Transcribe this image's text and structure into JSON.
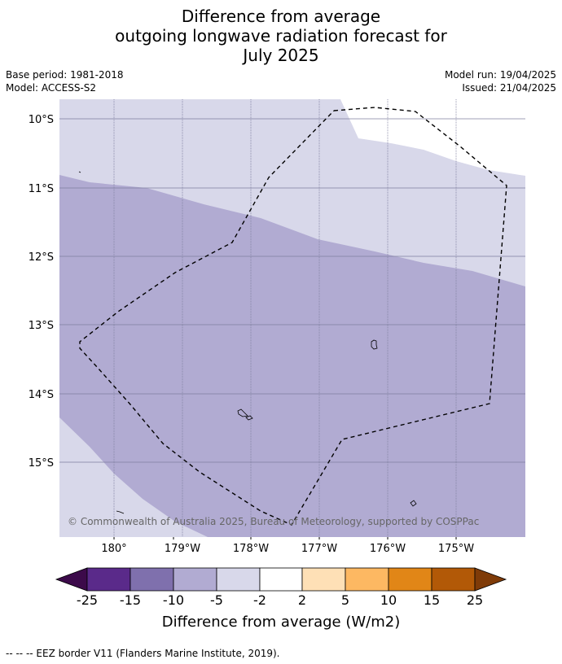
{
  "title": {
    "line1": "Difference from average",
    "line2": "outgoing longwave radiation forecast for",
    "line3": "July 2025"
  },
  "meta": {
    "base_period": "Base period: 1981-2018",
    "model": "Model: ACCESS-S2",
    "model_run": "Model run: 19/04/2025",
    "issued": "Issued: 21/04/2025"
  },
  "map": {
    "lat_labels": [
      "10°S",
      "11°S",
      "12°S",
      "13°S",
      "14°S",
      "15°S"
    ],
    "lon_labels": [
      "180°",
      "179°W",
      "178°W",
      "177°W",
      "176°W",
      "175°W"
    ],
    "copyright": "© Commonwealth of Australia 2025, Bureau of Meteorology, supported by COSPPac",
    "colors": {
      "band_minus_10_to_minus_5": "#b1abd2",
      "band_minus_5_to_minus_2": "#d8d8ea",
      "band_minus_2_to_2": "#ffffff",
      "gridline": "#7f7f9f",
      "eez_border": "#000000"
    }
  },
  "colorbar": {
    "ticks": [
      "-25",
      "-15",
      "-10",
      "-5",
      "-2",
      "2",
      "5",
      "10",
      "15",
      "25"
    ],
    "colors": [
      "#3c0a4a",
      "#5a2a8a",
      "#7f70ad",
      "#b1abd2",
      "#d8d8ea",
      "#ffffff",
      "#fee0b6",
      "#fdb862",
      "#e18617",
      "#b25907",
      "#7f3b08"
    ],
    "label": "Difference from average (W/m2)"
  },
  "footnote": "--  --  -- EEZ border V11 (Flanders Marine Institute, 2019)."
}
